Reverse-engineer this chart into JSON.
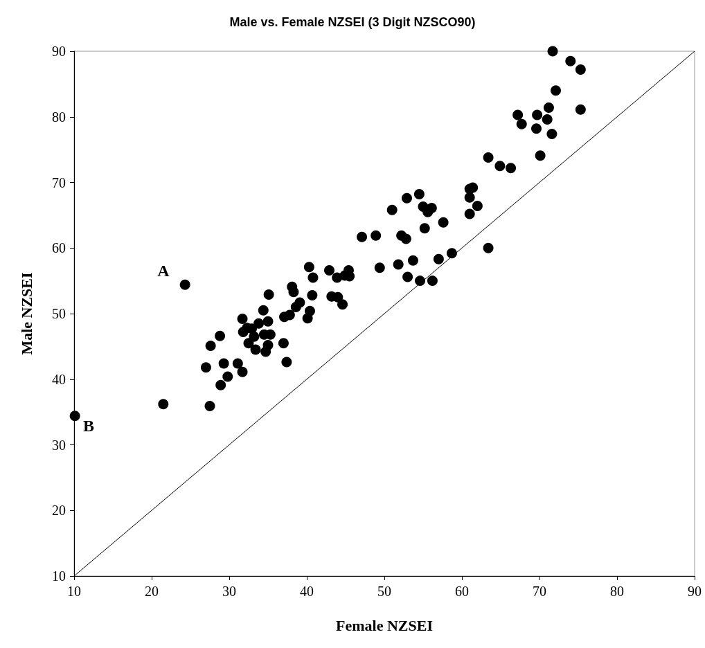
{
  "chart_data": {
    "type": "scatter",
    "title": "Male vs. Female NZSEI (3 Digit NZSCO90)",
    "xlabel": "Female NZSEI",
    "ylabel": "Male NZSEI",
    "xlim": [
      10,
      90
    ],
    "xticks": [
      10,
      20,
      30,
      40,
      50,
      60,
      70,
      80,
      90
    ],
    "ylim": [
      10,
      90
    ],
    "yticks": [
      10,
      20,
      30,
      40,
      50,
      60,
      70,
      80,
      90
    ],
    "grid": false,
    "marker": "circle",
    "annotations": [
      {
        "text": "A",
        "x": 24.3,
        "y": 54.4
      },
      {
        "text": "B",
        "x": 10.1,
        "y": 34.4
      }
    ],
    "series": [
      {
        "color": "#000000",
        "x": [
          10.1,
          21.5,
          24.3,
          27,
          27.5,
          27.6,
          28.8,
          28.9,
          29.3,
          29.8,
          31.1,
          31.7,
          31.7,
          31.8,
          32.3,
          32.5,
          32.9,
          33.2,
          33.4,
          33.8,
          34.4,
          34.5,
          34.7,
          35,
          35,
          35.1,
          35.3,
          37,
          37.1,
          37.4,
          37.8,
          38.1,
          38.3,
          38.6,
          39.1,
          40.1,
          40.3,
          40.4,
          40.7,
          40.8,
          42.9,
          43.2,
          43.9,
          44,
          44.6,
          44.9,
          45.4,
          45.5,
          47.1,
          48.9,
          49.4,
          51,
          51.8,
          52.2,
          52.8,
          52.9,
          53,
          53.7,
          54.5,
          54.6,
          55,
          55.2,
          55.6,
          56.1,
          56.2,
          57,
          57.6,
          58.7,
          61,
          61,
          61,
          61.4,
          62,
          63.4,
          63.4,
          64.9,
          66.3,
          67.2,
          67.7,
          69.6,
          69.7,
          70.1,
          71,
          71.2,
          71.6,
          71.7,
          72.1,
          74,
          75.3,
          75.3
        ],
        "values": [
          34.4,
          36.2,
          54.4,
          41.8,
          35.9,
          45.1,
          46.6,
          39.1,
          42.4,
          40.4,
          42.4,
          49.2,
          41.1,
          47.2,
          47.8,
          45.5,
          47.7,
          46.5,
          44.5,
          48.5,
          50.5,
          46.8,
          44.2,
          48.8,
          45.2,
          52.9,
          46.8,
          45.5,
          49.5,
          42.6,
          49.8,
          54.1,
          53.3,
          51,
          51.7,
          49.3,
          57.1,
          50.4,
          52.8,
          55.5,
          56.6,
          52.6,
          55.5,
          52.5,
          51.4,
          55.8,
          56.6,
          55.7,
          61.7,
          61.9,
          57,
          65.8,
          57.5,
          61.9,
          61.4,
          67.6,
          55.6,
          58.1,
          68.2,
          55,
          66.3,
          63,
          65.5,
          66.1,
          55,
          58.3,
          63.9,
          59.2,
          69,
          67.7,
          65.2,
          69.2,
          66.4,
          73.8,
          60,
          72.5,
          72.2,
          80.3,
          78.9,
          78.2,
          80.3,
          74.1,
          79.6,
          81.4,
          77.4,
          90,
          84,
          88.5,
          87.2,
          81.1
        ]
      },
      {
        "type": "line",
        "color": "#000000",
        "marker": "none",
        "line_style": "solid",
        "x": [
          10,
          90
        ],
        "values": [
          10,
          90
        ]
      }
    ]
  }
}
